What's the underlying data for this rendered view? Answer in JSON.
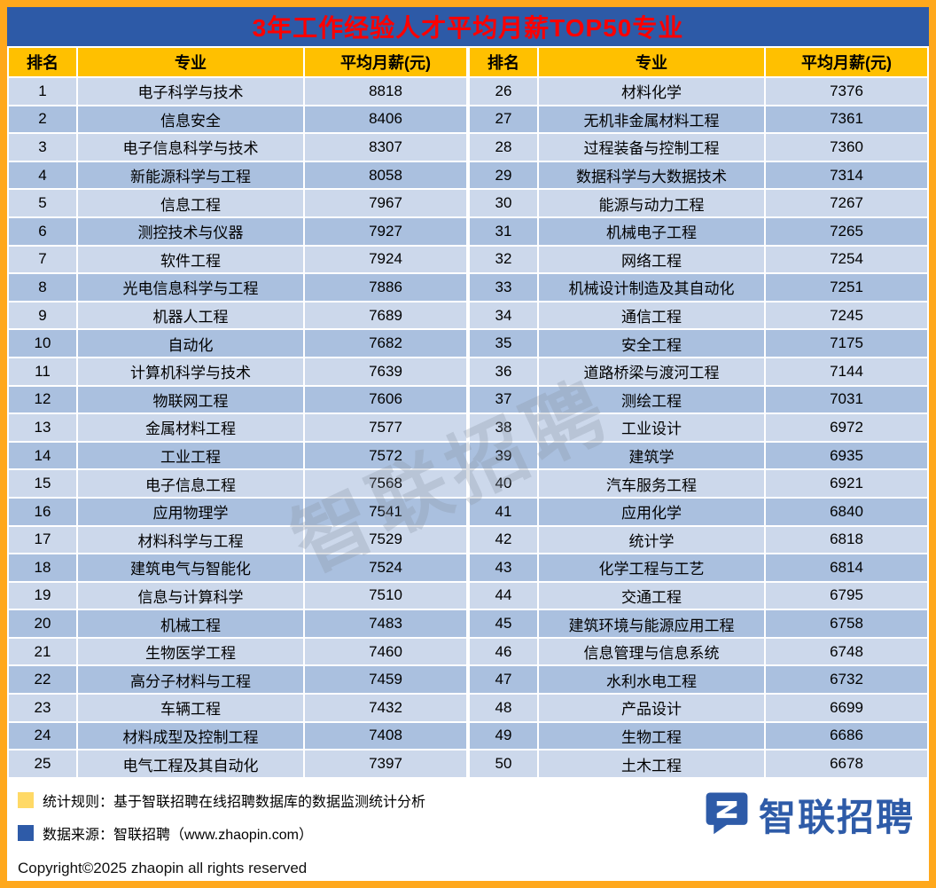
{
  "chart_data": {
    "type": "table",
    "title": "3年工作经验人才平均月薪TOP50专业",
    "columns": [
      "排名",
      "专业",
      "平均月薪(元)"
    ],
    "left_rows": [
      [
        "1",
        "电子科学与技术",
        "8818"
      ],
      [
        "2",
        "信息安全",
        "8406"
      ],
      [
        "3",
        "电子信息科学与技术",
        "8307"
      ],
      [
        "4",
        "新能源科学与工程",
        "8058"
      ],
      [
        "5",
        "信息工程",
        "7967"
      ],
      [
        "6",
        "测控技术与仪器",
        "7927"
      ],
      [
        "7",
        "软件工程",
        "7924"
      ],
      [
        "8",
        "光电信息科学与工程",
        "7886"
      ],
      [
        "9",
        "机器人工程",
        "7689"
      ],
      [
        "10",
        "自动化",
        "7682"
      ],
      [
        "11",
        "计算机科学与技术",
        "7639"
      ],
      [
        "12",
        "物联网工程",
        "7606"
      ],
      [
        "13",
        "金属材料工程",
        "7577"
      ],
      [
        "14",
        "工业工程",
        "7572"
      ],
      [
        "15",
        "电子信息工程",
        "7568"
      ],
      [
        "16",
        "应用物理学",
        "7541"
      ],
      [
        "17",
        "材料科学与工程",
        "7529"
      ],
      [
        "18",
        "建筑电气与智能化",
        "7524"
      ],
      [
        "19",
        "信息与计算科学",
        "7510"
      ],
      [
        "20",
        "机械工程",
        "7483"
      ],
      [
        "21",
        "生物医学工程",
        "7460"
      ],
      [
        "22",
        "高分子材料与工程",
        "7459"
      ],
      [
        "23",
        "车辆工程",
        "7432"
      ],
      [
        "24",
        "材料成型及控制工程",
        "7408"
      ],
      [
        "25",
        "电气工程及其自动化",
        "7397"
      ]
    ],
    "right_rows": [
      [
        "26",
        "材料化学",
        "7376"
      ],
      [
        "27",
        "无机非金属材料工程",
        "7361"
      ],
      [
        "28",
        "过程装备与控制工程",
        "7360"
      ],
      [
        "29",
        "数据科学与大数据技术",
        "7314"
      ],
      [
        "30",
        "能源与动力工程",
        "7267"
      ],
      [
        "31",
        "机械电子工程",
        "7265"
      ],
      [
        "32",
        "网络工程",
        "7254"
      ],
      [
        "33",
        "机械设计制造及其自动化",
        "7251"
      ],
      [
        "34",
        "通信工程",
        "7245"
      ],
      [
        "35",
        "安全工程",
        "7175"
      ],
      [
        "36",
        "道路桥梁与渡河工程",
        "7144"
      ],
      [
        "37",
        "测绘工程",
        "7031"
      ],
      [
        "38",
        "工业设计",
        "6972"
      ],
      [
        "39",
        "建筑学",
        "6935"
      ],
      [
        "40",
        "汽车服务工程",
        "6921"
      ],
      [
        "41",
        "应用化学",
        "6840"
      ],
      [
        "42",
        "统计学",
        "6818"
      ],
      [
        "43",
        "化学工程与工艺",
        "6814"
      ],
      [
        "44",
        "交通工程",
        "6795"
      ],
      [
        "45",
        "建筑环境与能源应用工程",
        "6758"
      ],
      [
        "46",
        "信息管理与信息系统",
        "6748"
      ],
      [
        "47",
        "水利水电工程",
        "6732"
      ],
      [
        "48",
        "产品设计",
        "6699"
      ],
      [
        "49",
        "生物工程",
        "6686"
      ],
      [
        "50",
        "土木工程",
        "6678"
      ]
    ]
  },
  "watermark": "智联招聘",
  "footer": {
    "legend": [
      {
        "swatch": "yellow",
        "text": "统计规则：基于智联招聘在线招聘数据库的数据监测统计分析"
      },
      {
        "swatch": "blue",
        "text": "数据来源：智联招聘（www.zhaopin.com）"
      }
    ],
    "copyright": "Copyright©2025 zhaopin all rights reserved",
    "logo_text": "智联招聘"
  },
  "colors": {
    "border-orange": "#FFA81C",
    "title-blue": "#2D5AA7",
    "title-red": "#FF0000",
    "header-gold": "#FFC000",
    "row-light": "#CCD8EB",
    "row-dark": "#AAC0DF",
    "legend-yellow": "#FFD966",
    "legend-blue": "#2E5BA8",
    "logo-blue": "#2E5BA8"
  }
}
